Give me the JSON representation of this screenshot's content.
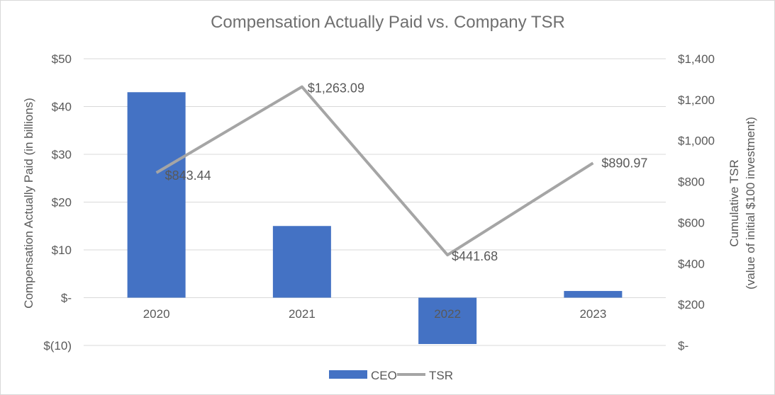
{
  "chart_data": {
    "type": "bar+line",
    "title": "Compensation Actually Paid vs. Company TSR",
    "categories": [
      "2020",
      "2021",
      "2022",
      "2023"
    ],
    "ylabel_left": "Compensation Actually Paid (in billions)",
    "ylabel_right_line1": "Cumulative TSR",
    "ylabel_right_line2": "(value of initial $100 investment)",
    "y_left": {
      "min": -10,
      "max": 50,
      "step": 10,
      "tick_labels": [
        "$(10)",
        "$-",
        "$10",
        "$20",
        "$30",
        "$40",
        "$50"
      ]
    },
    "y_right": {
      "min": 0,
      "max": 1400,
      "step": 200,
      "tick_labels": [
        "$-",
        "$200",
        "$400",
        "$600",
        "$800",
        "$1,000",
        "$1,200",
        "$1,400"
      ]
    },
    "series": [
      {
        "name": "CEO",
        "type": "bar",
        "axis": "left",
        "color": "#4472c4",
        "values": [
          43.0,
          15.0,
          -9.7,
          1.4
        ]
      },
      {
        "name": "TSR",
        "type": "line",
        "axis": "right",
        "color": "#a5a5a5",
        "values": [
          843.44,
          1263.09,
          441.68,
          890.97
        ],
        "data_labels": [
          "$843.44",
          "$1,263.09",
          "$441.68",
          "$890.97"
        ]
      }
    ],
    "grid": true,
    "legend": "bottom"
  }
}
